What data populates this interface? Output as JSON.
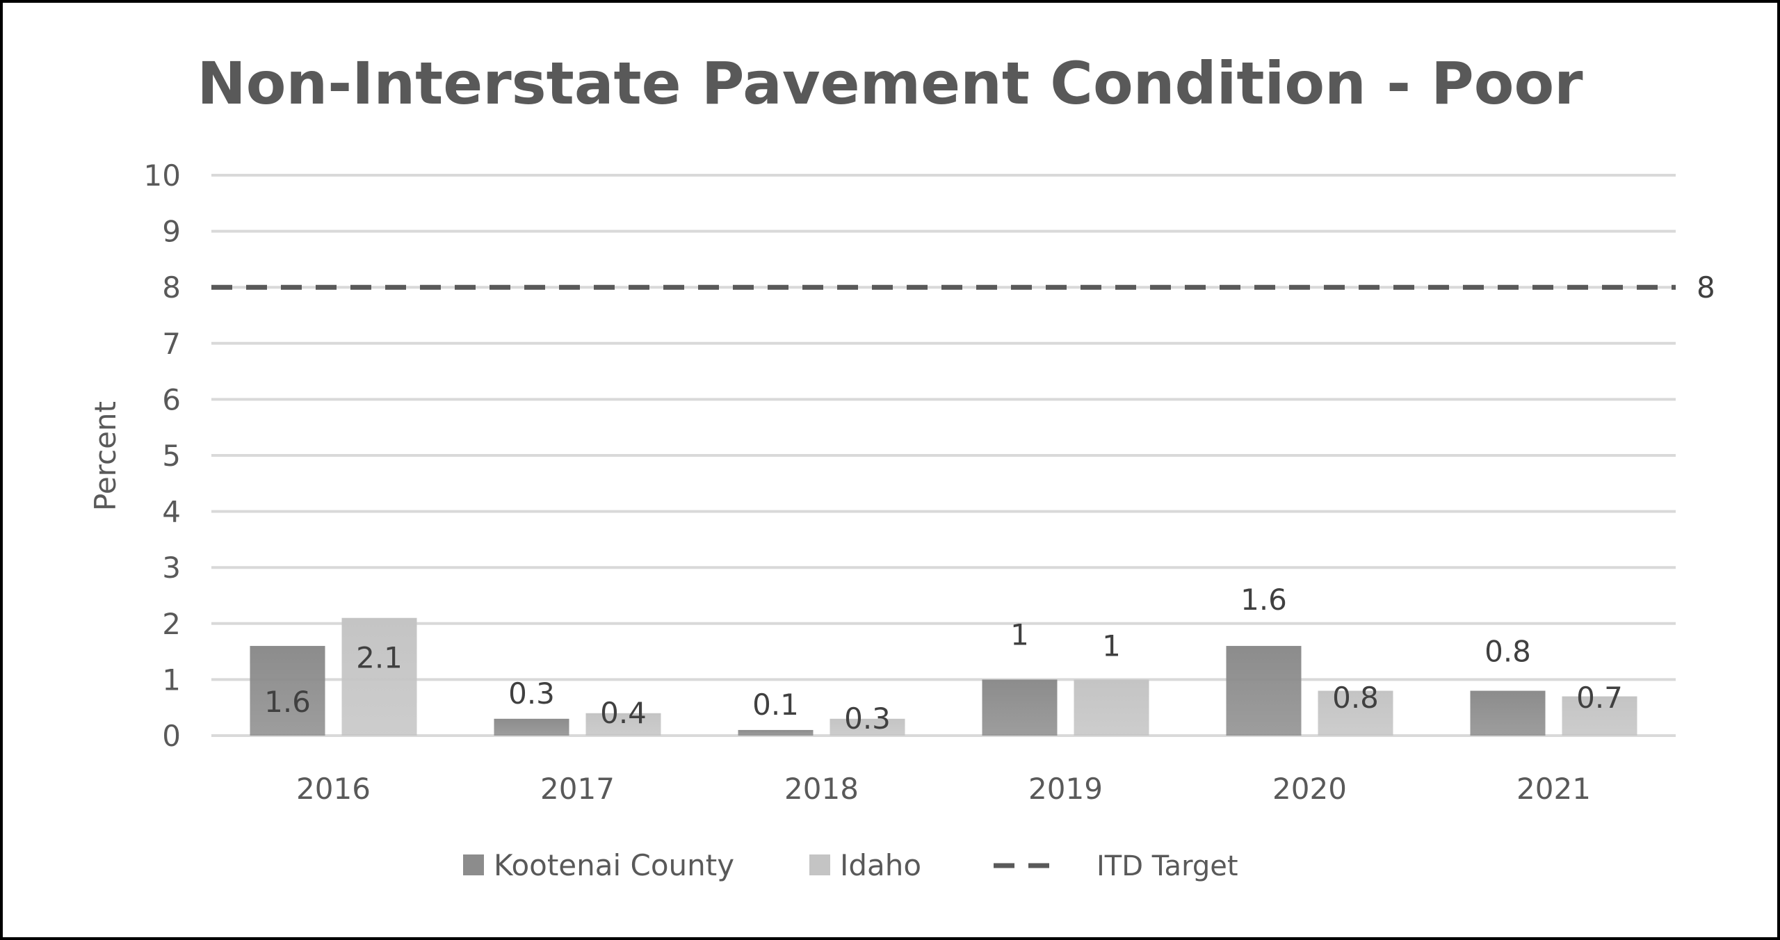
{
  "chart_data": {
    "type": "bar",
    "title": "Non-Interstate Pavement Condition - Poor",
    "ylabel": "Percent",
    "xlabel": "",
    "categories": [
      "2016",
      "2017",
      "2018",
      "2019",
      "2020",
      "2021"
    ],
    "ylim": [
      0,
      10
    ],
    "yticks": [
      "0",
      "1",
      "2",
      "3",
      "4",
      "5",
      "6",
      "7",
      "8",
      "9",
      "10"
    ],
    "grid": true,
    "legend_position": "bottom",
    "series": [
      {
        "name": "Kootenai County",
        "values": [
          1.6,
          0.3,
          0.1,
          1,
          1.6,
          0.8
        ],
        "labels": [
          "1.6",
          "0.3",
          "0.1",
          "1",
          "1.6",
          "0.8"
        ],
        "color": "#8c8c8c"
      },
      {
        "name": "Idaho",
        "values": [
          2.1,
          0.4,
          0.3,
          1,
          0.8,
          0.7
        ],
        "labels": [
          "2.1",
          "0.4",
          "0.3",
          "1",
          "0.8",
          "0.7"
        ],
        "color": "#c4c4c4"
      }
    ],
    "target": {
      "name": "ITD Target",
      "value": 8,
      "label": "8",
      "color": "#595959"
    }
  }
}
